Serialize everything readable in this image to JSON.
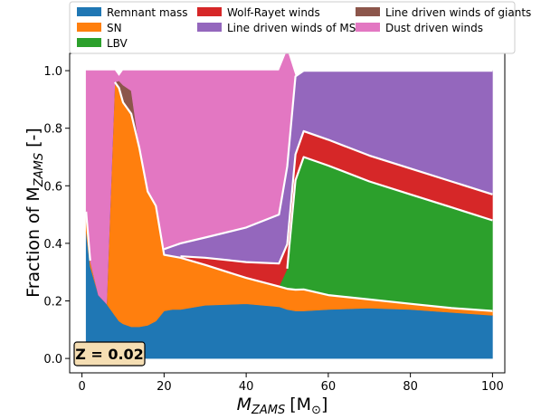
{
  "chart_data": {
    "type": "area",
    "xlabel": "M_ZAMS [M☉]",
    "xlabel_parts": {
      "main": "M",
      "sub": "ZAMS",
      "unit": "[M",
      "unit_sub": "⊙",
      "unit_end": "]"
    },
    "ylabel": "Fraction of M_ZAMS [-]",
    "ylabel_parts": {
      "main": "Fraction of M",
      "sub": "ZAMS",
      "suffix": " [-]"
    },
    "xlim": [
      -3,
      103
    ],
    "ylim": [
      -0.05,
      1.06
    ],
    "xticks": [
      0,
      20,
      40,
      60,
      80,
      100
    ],
    "yticks": [
      0.0,
      0.2,
      0.4,
      0.6,
      0.8,
      1.0
    ],
    "xtick_labels": [
      "0",
      "20",
      "40",
      "60",
      "80",
      "100"
    ],
    "ytick_labels": [
      "0.0",
      "0.2",
      "0.4",
      "0.6",
      "0.8",
      "1.0"
    ],
    "annotation": "Z = 0.02",
    "grid": false,
    "legend_position": "top",
    "x": [
      1,
      2,
      4,
      6,
      8,
      9,
      10,
      12,
      14,
      16,
      18,
      20,
      22,
      24,
      30,
      40,
      48,
      50,
      52,
      54,
      60,
      70,
      80,
      90,
      100
    ],
    "series": [
      {
        "name": "Remnant mass",
        "color": "#1f77b4",
        "values": [
          0.44,
          0.32,
          0.22,
          0.19,
          0.15,
          0.13,
          0.12,
          0.11,
          0.11,
          0.115,
          0.13,
          0.165,
          0.17,
          0.17,
          0.185,
          0.19,
          0.18,
          0.17,
          0.165,
          0.165,
          0.17,
          0.175,
          0.17,
          0.16,
          0.15
        ]
      },
      {
        "name": "SN",
        "color": "#ff7f0e",
        "values": [
          0.07,
          0.02,
          0.0,
          0.0,
          0.81,
          0.81,
          0.77,
          0.74,
          0.62,
          0.465,
          0.4,
          0.195,
          0.185,
          0.18,
          0.14,
          0.09,
          0.07,
          0.072,
          0.074,
          0.075,
          0.05,
          0.03,
          0.02,
          0.015,
          0.015
        ]
      },
      {
        "name": "LBV",
        "color": "#2ca02c",
        "values": [
          0,
          0,
          0,
          0,
          0,
          0,
          0,
          0,
          0,
          0,
          0,
          0,
          0,
          0,
          0,
          0,
          0,
          0.07,
          0.38,
          0.46,
          0.45,
          0.41,
          0.38,
          0.35,
          0.315
        ]
      },
      {
        "name": "Wolf-Rayet winds",
        "color": "#d62728",
        "values": [
          0,
          0,
          0,
          0,
          0,
          0,
          0,
          0,
          0,
          0,
          0,
          0,
          0,
          0.005,
          0.025,
          0.055,
          0.08,
          0.085,
          0.09,
          0.09,
          0.09,
          0.09,
          0.09,
          0.09,
          0.09
        ]
      },
      {
        "name": "Line driven winds of MS",
        "color": "#9467bd",
        "values": [
          0,
          0,
          0,
          0,
          0,
          0,
          0,
          0,
          0,
          0,
          0,
          0.02,
          0.035,
          0.045,
          0.07,
          0.12,
          0.17,
          0.27,
          0.271,
          0.21,
          0.24,
          0.295,
          0.34,
          0.385,
          0.43
        ]
      },
      {
        "name": "Line driven winds of giants",
        "color": "#8c564b",
        "values": [
          0,
          0,
          0,
          0,
          0,
          0.025,
          0.06,
          0.08,
          0,
          0,
          0,
          0,
          0,
          0,
          0,
          0,
          0,
          0,
          0,
          0,
          0,
          0,
          0,
          0,
          0
        ]
      },
      {
        "name": "Dust driven winds",
        "color": "#e377c2",
        "values": [
          0.49,
          0.66,
          0.78,
          0.81,
          0.04,
          0.015,
          0.05,
          0.07,
          0.27,
          0.42,
          0.47,
          0.62,
          0.61,
          0.6,
          0.58,
          0.545,
          0.5,
          0.403,
          0,
          0,
          0,
          0,
          0,
          0,
          0
        ]
      }
    ]
  }
}
